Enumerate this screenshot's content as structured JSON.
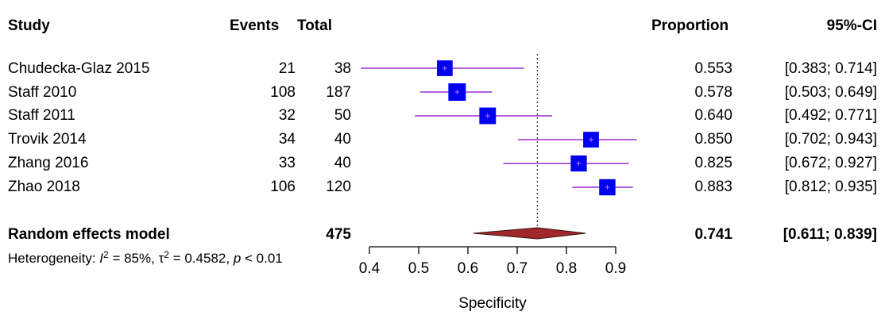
{
  "header": {
    "study": "Study",
    "events": "Events",
    "total": "Total",
    "proportion": "Proportion",
    "ci": "95%-CI"
  },
  "studies": [
    {
      "name": "Chudecka-Glaz 2015",
      "events": "21",
      "total": "38",
      "proportion": "0.553",
      "ci": "[0.383; 0.714]"
    },
    {
      "name": "Staff 2010",
      "events": "108",
      "total": "187",
      "proportion": "0.578",
      "ci": "[0.503; 0.649]"
    },
    {
      "name": "Staff 2011",
      "events": "32",
      "total": "50",
      "proportion": "0.640",
      "ci": "[0.492; 0.771]"
    },
    {
      "name": "Trovik 2014",
      "events": "34",
      "total": "40",
      "proportion": "0.850",
      "ci": "[0.702; 0.943]"
    },
    {
      "name": "Zhang 2016",
      "events": "33",
      "total": "40",
      "proportion": "0.825",
      "ci": "[0.672; 0.927]"
    },
    {
      "name": "Zhao 2018",
      "events": "106",
      "total": "120",
      "proportion": "0.883",
      "ci": "[0.812; 0.935]"
    }
  ],
  "pooled": {
    "label": "Random effects model",
    "total": "475",
    "proportion": "0.741",
    "ci": "[0.611; 0.839]"
  },
  "heterogeneity": {
    "prefix": "Heterogeneity: ",
    "i2_symbol": "I",
    "i2_value": " = 85%, ",
    "tau_symbol": "τ",
    "tau_value": " = 0.4582, ",
    "p_symbol": "p",
    "p_value": " < 0.01"
  },
  "chart_data": {
    "type": "scatter",
    "subtype": "forest-plot",
    "xlabel": "Specificity",
    "xlim": [
      0.4,
      0.9
    ],
    "xticks": [
      "0.4",
      "0.5",
      "0.6",
      "0.7",
      "0.8",
      "0.9"
    ],
    "reference_line": 0.741,
    "points": [
      {
        "label": "Chudecka-Glaz 2015",
        "x": 0.553,
        "lower": 0.383,
        "upper": 0.714,
        "weight": 0.9
      },
      {
        "label": "Staff 2010",
        "x": 0.578,
        "lower": 0.503,
        "upper": 0.649,
        "weight": 1.0
      },
      {
        "label": "Staff 2011",
        "x": 0.64,
        "lower": 0.492,
        "upper": 0.771,
        "weight": 0.95
      },
      {
        "label": "Trovik 2014",
        "x": 0.85,
        "lower": 0.702,
        "upper": 0.943,
        "weight": 0.9
      },
      {
        "label": "Zhang 2016",
        "x": 0.825,
        "lower": 0.672,
        "upper": 0.927,
        "weight": 0.92
      },
      {
        "label": "Zhao 2018",
        "x": 0.883,
        "lower": 0.812,
        "upper": 0.935,
        "weight": 0.93
      }
    ],
    "pooled": {
      "x": 0.741,
      "lower": 0.611,
      "upper": 0.839
    },
    "colors": {
      "square": "#0000ee",
      "ci_line": "#9a2bd4",
      "diamond": "#a0282a",
      "axis": "#000000"
    }
  }
}
